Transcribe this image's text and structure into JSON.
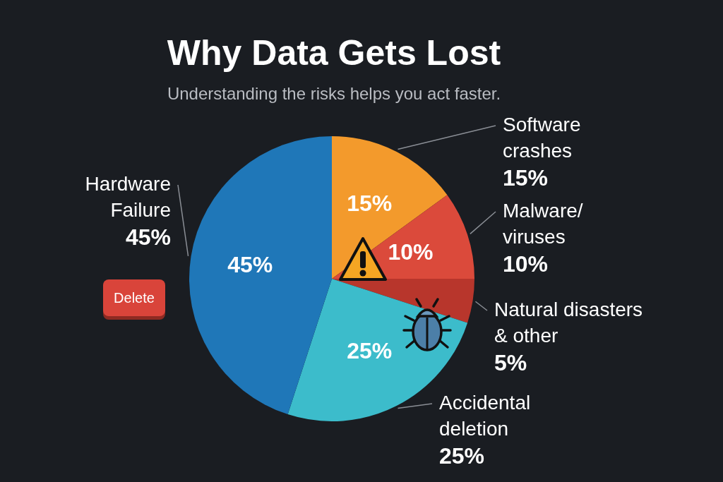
{
  "chart_data": {
    "type": "pie",
    "title": "Why Data Gets Lost",
    "subtitle": "Understanding the risks helps you act faster.",
    "categories": [
      "Software crashes",
      "Malware/ viruses",
      "Natural disasters & other",
      "Accidental deletion",
      "Hardware Failure"
    ],
    "values": [
      15,
      10,
      5,
      25,
      45
    ],
    "value_labels": [
      "15%",
      "10%",
      "5%",
      "25%",
      "45%"
    ],
    "colors": [
      "#f39a2c",
      "#db4a3b",
      "#b8362c",
      "#3cbccb",
      "#1f77b8"
    ],
    "annotations": [
      "Delete"
    ],
    "legend": false
  }
}
